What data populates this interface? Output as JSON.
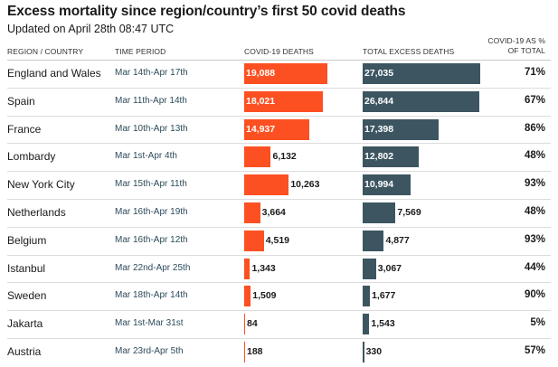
{
  "header": {
    "title": "Excess mortality since region/country’s first 50 covid deaths",
    "subtitle": "Updated on April 28th 08:47 UTC"
  },
  "columns": {
    "region": "REGION / COUNTRY",
    "period": "TIME PERIOD",
    "covid": "COVID-19 DEATHS",
    "excess": "TOTAL EXCESS DEATHS",
    "pct_line1": "COVID-19 AS %",
    "pct_line2": "OF TOTAL"
  },
  "colors": {
    "covid_bar": "#fc5022",
    "excess_bar": "#3c5561"
  },
  "chart_data": {
    "type": "table",
    "title": "Excess mortality since region/country’s first 50 covid deaths",
    "subtitle": "Updated on April 28th 08:47 UTC",
    "series": [
      {
        "name": "COVID-19 DEATHS"
      },
      {
        "name": "TOTAL EXCESS DEATHS"
      }
    ],
    "rows": [
      {
        "region": "England and Wales",
        "period": "Mar 14th-Apr 17th",
        "covid": 19088,
        "covid_label": "19,088",
        "excess": 27035,
        "excess_label": "27,035",
        "pct": "71%"
      },
      {
        "region": "Spain",
        "period": "Mar 11th-Apr 14th",
        "covid": 18021,
        "covid_label": "18,021",
        "excess": 26844,
        "excess_label": "26,844",
        "pct": "67%"
      },
      {
        "region": "France",
        "period": "Mar 10th-Apr 13th",
        "covid": 14937,
        "covid_label": "14,937",
        "excess": 17398,
        "excess_label": "17,398",
        "pct": "86%"
      },
      {
        "region": "Lombardy",
        "period": "Mar 1st-Apr 4th",
        "covid": 6132,
        "covid_label": "6,132",
        "excess": 12802,
        "excess_label": "12,802",
        "pct": "48%"
      },
      {
        "region": "New York City",
        "period": "Mar 15th-Apr 11th",
        "covid": 10263,
        "covid_label": "10,263",
        "excess": 10994,
        "excess_label": "10,994",
        "pct": "93%"
      },
      {
        "region": "Netherlands",
        "period": "Mar 16th-Apr 19th",
        "covid": 3664,
        "covid_label": "3,664",
        "excess": 7569,
        "excess_label": "7,569",
        "pct": "48%"
      },
      {
        "region": "Belgium",
        "period": "Mar 16th-Apr 12th",
        "covid": 4519,
        "covid_label": "4,519",
        "excess": 4877,
        "excess_label": "4,877",
        "pct": "93%"
      },
      {
        "region": "Istanbul",
        "period": "Mar 22nd-Apr 25th",
        "covid": 1343,
        "covid_label": "1,343",
        "excess": 3067,
        "excess_label": "3,067",
        "pct": "44%"
      },
      {
        "region": "Sweden",
        "period": "Mar 18th-Apr 14th",
        "covid": 1509,
        "covid_label": "1,509",
        "excess": 1677,
        "excess_label": "1,677",
        "pct": "90%"
      },
      {
        "region": "Jakarta",
        "period": "Mar 1st-Mar 31st",
        "covid": 84,
        "covid_label": "84",
        "excess": 1543,
        "excess_label": "1,543",
        "pct": "5%"
      },
      {
        "region": "Austria",
        "period": "Mar 23rd-Apr 5th",
        "covid": 188,
        "covid_label": "188",
        "excess": 330,
        "excess_label": "330",
        "pct": "57%"
      }
    ]
  }
}
